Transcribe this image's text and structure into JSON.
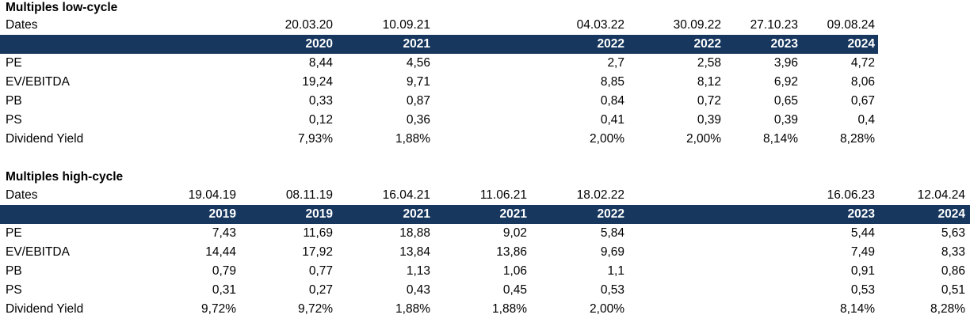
{
  "low": {
    "title": "Multiples low-cycle",
    "dates_label": "Dates",
    "dates": [
      "20.03.20",
      "10.09.21",
      "04.03.22",
      "30.09.22",
      "27.10.23",
      "09.08.24"
    ],
    "years": [
      "2020",
      "2021",
      "2022",
      "2022",
      "2023",
      "2024"
    ],
    "rows": [
      {
        "label": "PE",
        "values": [
          "8,44",
          "4,56",
          "2,7",
          "2,58",
          "3,96",
          "4,72"
        ]
      },
      {
        "label": "EV/EBITDA",
        "values": [
          "19,24",
          "9,71",
          "8,85",
          "8,12",
          "6,92",
          "8,06"
        ]
      },
      {
        "label": "PB",
        "values": [
          "0,33",
          "0,87",
          "0,84",
          "0,72",
          "0,65",
          "0,67"
        ]
      },
      {
        "label": "PS",
        "values": [
          "0,12",
          "0,36",
          "0,41",
          "0,39",
          "0,39",
          "0,4"
        ]
      },
      {
        "label": "Dividend Yield",
        "values": [
          "7,93%",
          "1,88%",
          "2,00%",
          "2,00%",
          "8,14%",
          "8,28%"
        ]
      }
    ]
  },
  "high": {
    "title": "Multiples high-cycle",
    "dates_label": "Dates",
    "dates": [
      "19.04.19",
      "08.11.19",
      "16.04.21",
      "11.06.21",
      "18.02.22",
      "16.06.23",
      "12.04.24"
    ],
    "years": [
      "2019",
      "2019",
      "2021",
      "2021",
      "2022",
      "2023",
      "2024"
    ],
    "rows": [
      {
        "label": "PE",
        "values": [
          "7,43",
          "11,69",
          "18,88",
          "9,02",
          "5,84",
          "5,44",
          "5,63"
        ]
      },
      {
        "label": "EV/EBITDA",
        "values": [
          "14,44",
          "17,92",
          "13,84",
          "13,86",
          "9,69",
          "7,49",
          "8,33"
        ]
      },
      {
        "label": "PB",
        "values": [
          "0,79",
          "0,77",
          "1,13",
          "1,06",
          "1,1",
          "0,91",
          "0,86"
        ]
      },
      {
        "label": "PS",
        "values": [
          "0,31",
          "0,27",
          "0,43",
          "0,45",
          "0,53",
          "0,53",
          "0,51"
        ]
      },
      {
        "label": "Dividend Yield",
        "values": [
          "9,72%",
          "9,72%",
          "1,88%",
          "1,88%",
          "2,00%",
          "8,14%",
          "8,28%"
        ]
      }
    ]
  },
  "colors": {
    "header_band": "#17375e",
    "header_text": "#ffffff"
  }
}
